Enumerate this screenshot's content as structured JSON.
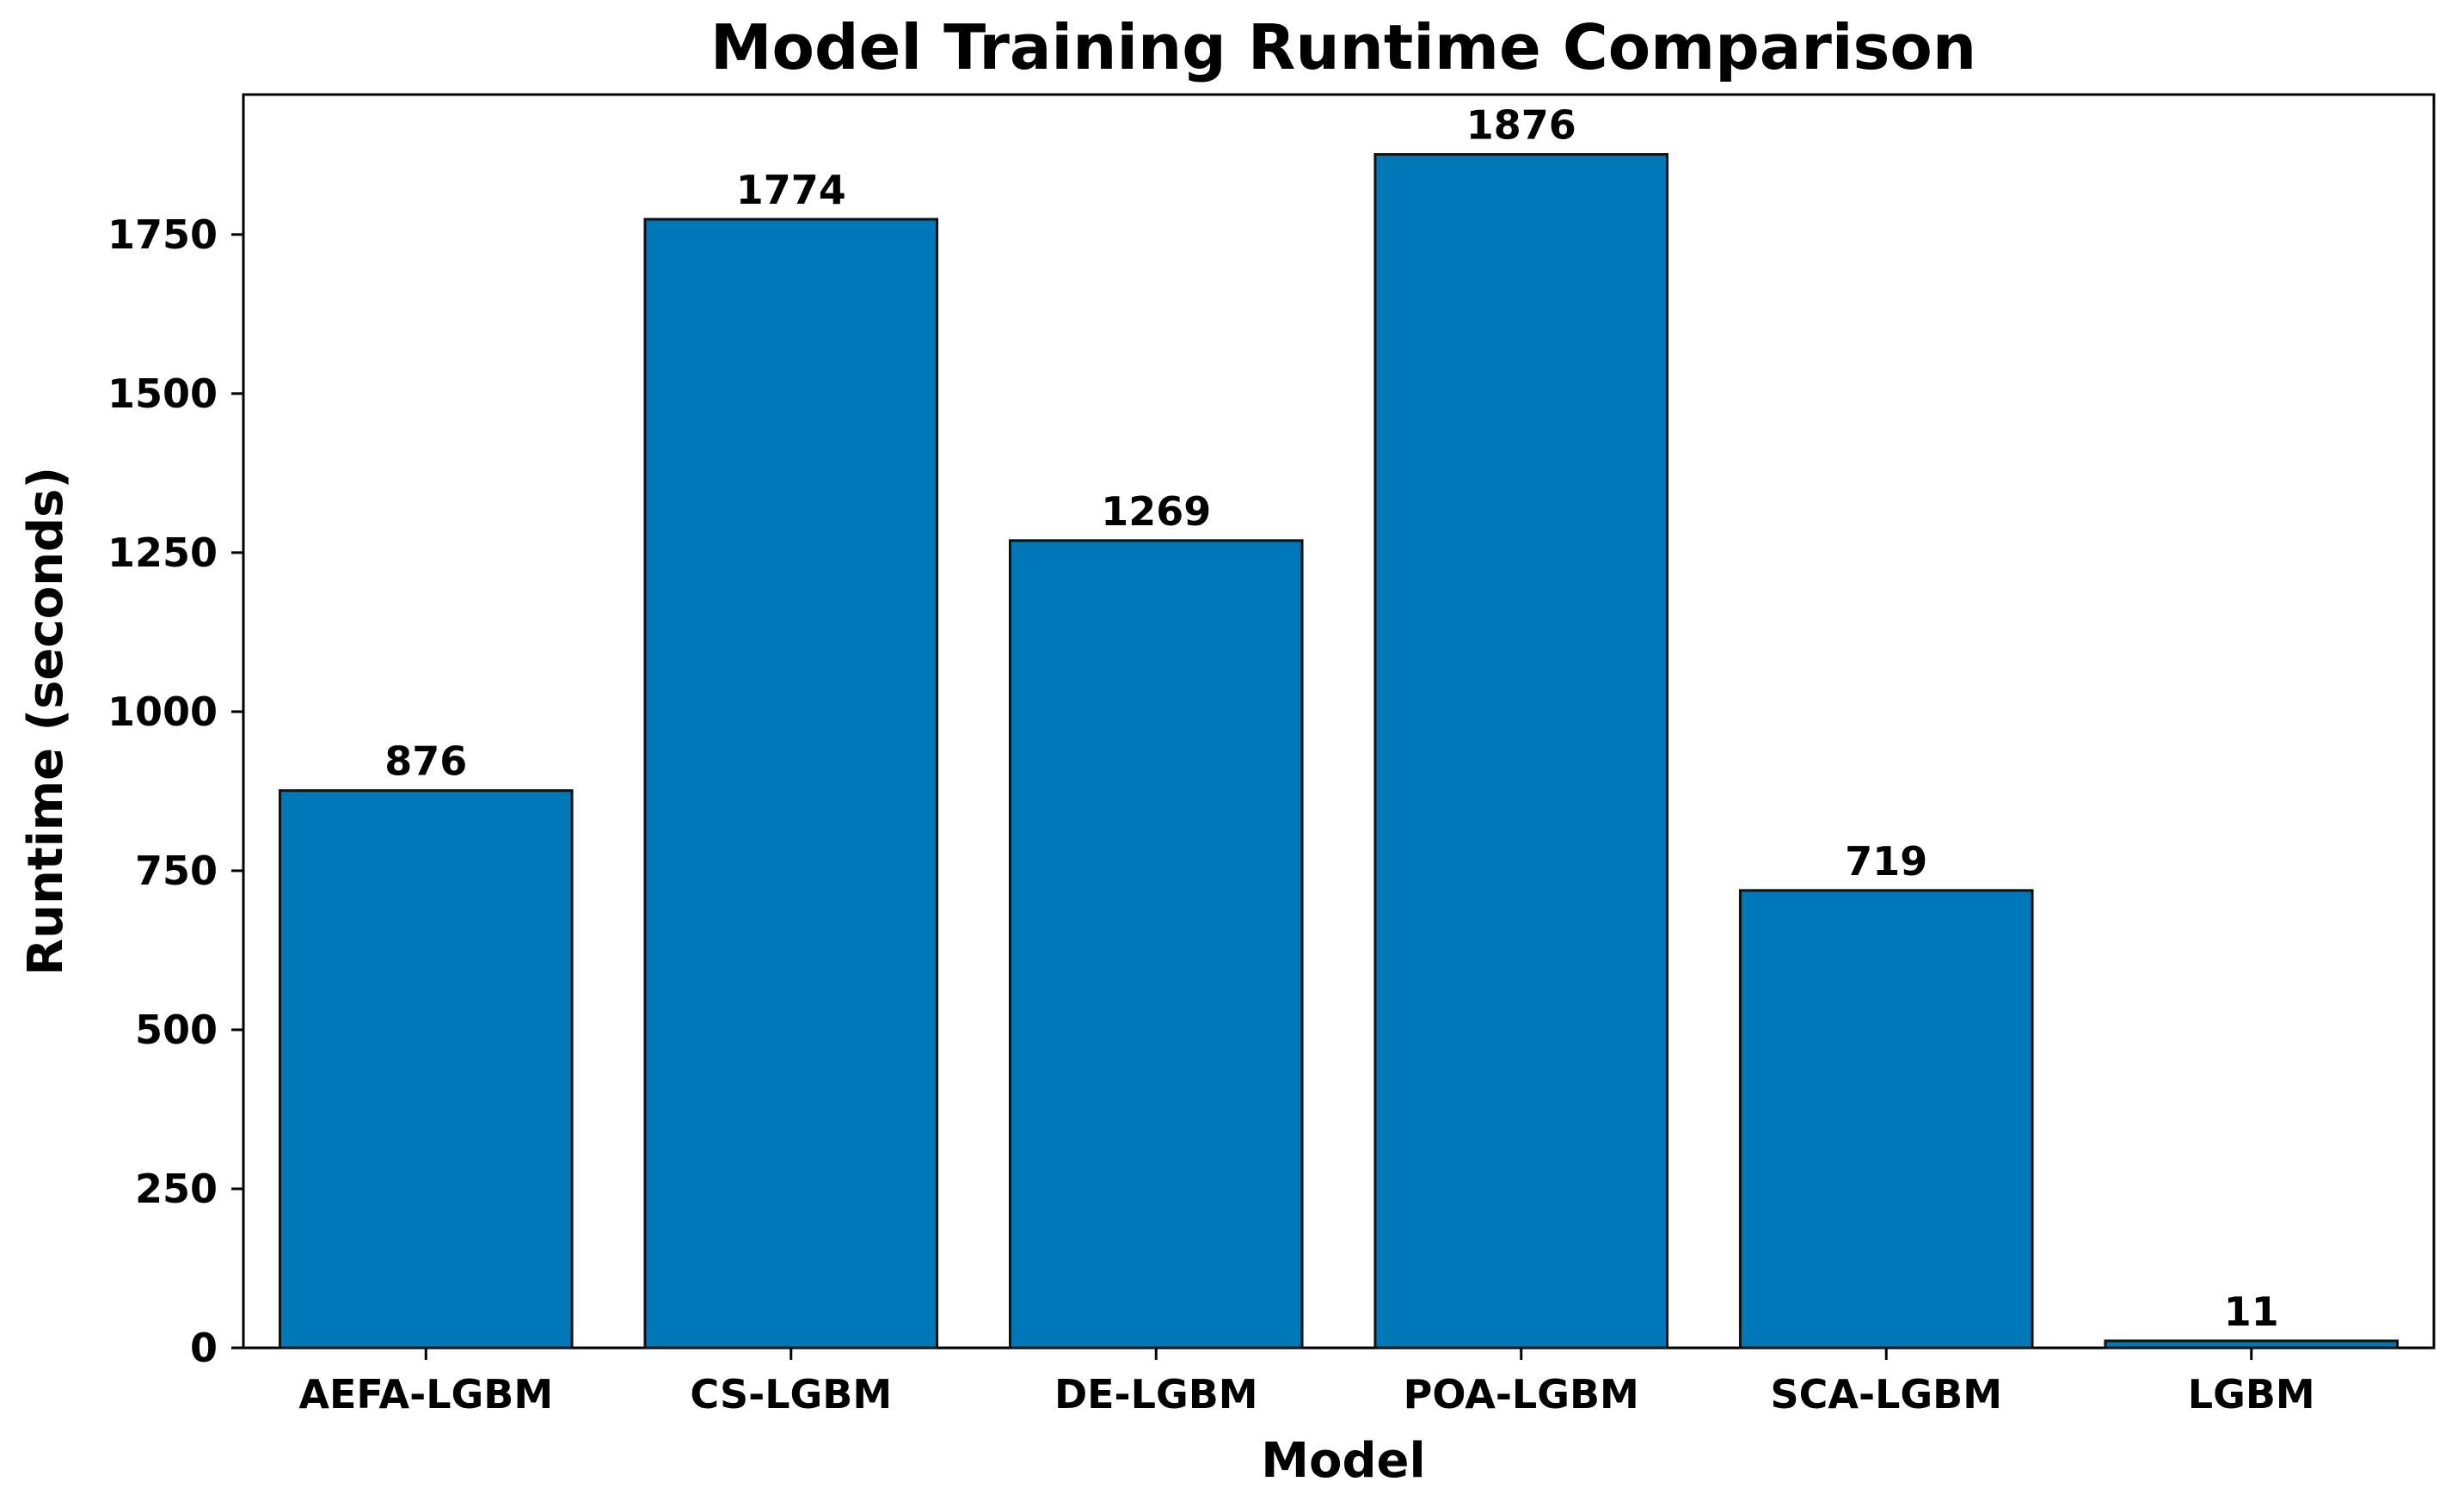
{
  "chart_data": {
    "type": "bar",
    "title": "Model Training Runtime Comparison",
    "xlabel": "Model",
    "ylabel": "Runtime (seconds)",
    "categories": [
      "AEFA-LGBM",
      "CS-LGBM",
      "DE-LGBM",
      "POA-LGBM",
      "SCA-LGBM",
      "LGBM"
    ],
    "values": [
      876,
      1774,
      1269,
      1876,
      719,
      11
    ],
    "data_labels": [
      "876",
      "1774",
      "1269",
      "1876",
      "719",
      "11"
    ],
    "ylim": [
      0,
      1970
    ],
    "yticks": [
      0,
      250,
      500,
      750,
      1000,
      1250,
      1500,
      1750
    ],
    "ytick_labels": [
      "0",
      "250",
      "500",
      "750",
      "1000",
      "1250",
      "1500",
      "1750"
    ],
    "grid": false,
    "legend": false,
    "bar_color": "#0077b6",
    "edge_color": "#111111"
  }
}
